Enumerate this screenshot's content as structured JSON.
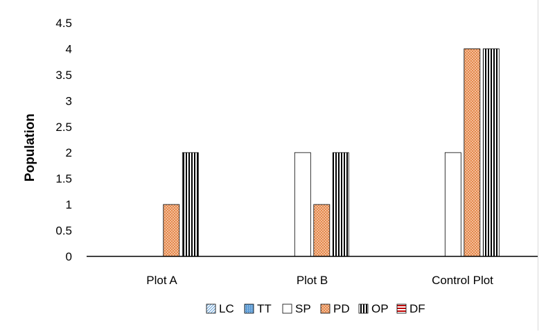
{
  "chart_data": {
    "type": "bar",
    "title": "",
    "xlabel": "",
    "ylabel": "Population",
    "ylim": [
      0,
      4.5
    ],
    "yticks": [
      "0",
      "0.5",
      "1",
      "1.5",
      "2",
      "2.5",
      "3",
      "3.5",
      "4",
      "4.5"
    ],
    "grid": false,
    "legend_position": "bottom",
    "categories": [
      "Plot A",
      "Plot B",
      "Control Plot"
    ],
    "series": [
      {
        "name": "LC",
        "values": [
          0,
          0,
          0
        ],
        "pattern": "diagonal",
        "color": "#5b9bd5"
      },
      {
        "name": "TT",
        "values": [
          0,
          0,
          0
        ],
        "pattern": "dotted",
        "color": "#5b9bd5"
      },
      {
        "name": "SP",
        "values": [
          0,
          2,
          2
        ],
        "pattern": "solid-white",
        "color": "#ffffff"
      },
      {
        "name": "PD",
        "values": [
          1,
          1,
          4
        ],
        "pattern": "crosshatch",
        "color": "#f4b183"
      },
      {
        "name": "OP",
        "values": [
          2,
          2,
          4
        ],
        "pattern": "vertical-lines",
        "color": "#000000"
      },
      {
        "name": "DF",
        "values": [
          0,
          0,
          0
        ],
        "pattern": "horizontal-lines",
        "color": "#c00000"
      }
    ]
  }
}
